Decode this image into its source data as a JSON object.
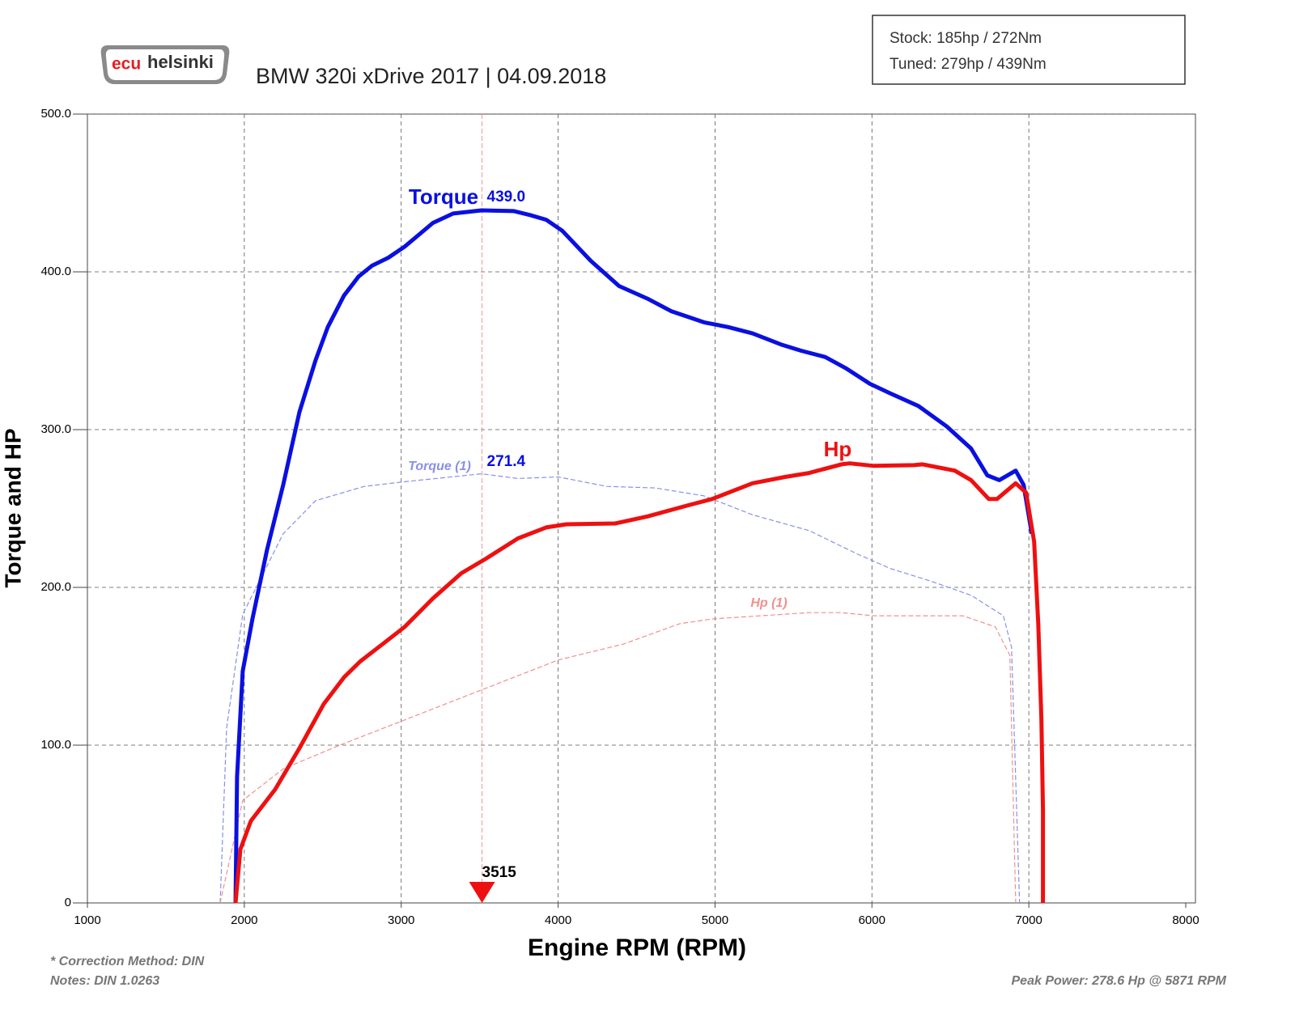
{
  "chart_data": {
    "type": "line",
    "title": "BMW 320i xDrive 2017 | 04.09.2018",
    "logo": {
      "part1": "ecu",
      "part2": "helsinki"
    },
    "summary": [
      "Stock:  185hp / 272Nm",
      "Tuned:  279hp / 439Nm"
    ],
    "x_label": "Engine RPM (RPM)",
    "y_label": "Torque and HP",
    "xlim": [
      1000,
      8000
    ],
    "ylim": [
      0,
      500
    ],
    "xticks": [
      1000,
      2000,
      3000,
      4000,
      5000,
      6000,
      7000,
      8000
    ],
    "yticks": [
      0,
      {
        "value": 100,
        "label": "100.0"
      },
      {
        "value": 200,
        "label": "200.0"
      },
      {
        "value": 300,
        "label": "300.0"
      },
      {
        "value": 400,
        "label": "400.0"
      },
      {
        "value": 500,
        "label": "500.0"
      }
    ],
    "grid": true,
    "series": [
      {
        "name": "Torque",
        "color": "#0a10e0",
        "dashed": false,
        "x": [
          1944,
          1954,
          1990,
          2052,
          2145,
          2248,
          2351,
          2454,
          2532,
          2635,
          2728,
          2815,
          2918,
          3022,
          3202,
          3331,
          3512,
          3718,
          3821,
          3924,
          4027,
          4208,
          4388,
          4569,
          4723,
          4930,
          5085,
          5239,
          5420,
          5549,
          5703,
          5832,
          5987,
          6116,
          6296,
          6477,
          6632,
          6735,
          6812,
          6916,
          6967,
          7019
        ],
        "values": [
          0,
          80,
          147,
          180,
          224,
          265,
          311,
          344,
          365,
          385,
          397,
          404,
          409,
          416,
          431,
          437,
          439,
          438.5,
          436,
          433,
          426,
          407,
          391,
          383,
          375,
          368,
          365,
          361,
          354,
          350,
          346,
          339,
          329,
          323,
          315,
          302,
          288,
          271,
          268,
          274,
          265,
          234
        ]
      },
      {
        "name": "Hp",
        "color": "#ee1010",
        "dashed": false,
        "x": [
          1944,
          1975,
          2042,
          2197,
          2351,
          2506,
          2635,
          2738,
          2893,
          3022,
          3202,
          3383,
          3537,
          3743,
          3924,
          4053,
          4363,
          4569,
          4827,
          4981,
          5239,
          5446,
          5600,
          5806,
          5858,
          6012,
          6270,
          6322,
          6528,
          6632,
          6745,
          6797,
          6916,
          6983,
          7034,
          7060,
          7080,
          7090,
          7090
        ],
        "values": [
          0,
          34,
          52,
          72,
          98,
          126,
          143,
          153,
          165,
          175,
          193,
          209,
          218,
          231,
          238,
          240,
          240.5,
          245,
          252,
          256,
          266,
          270,
          272.5,
          278,
          278.6,
          277,
          277.5,
          278,
          274,
          268,
          256,
          256,
          266,
          260,
          229,
          177,
          116,
          59,
          0
        ]
      },
      {
        "name": "Torque (1)",
        "color": "#8890e8",
        "dashed": true,
        "x": [
          1846,
          1887,
          1990,
          2248,
          2454,
          2764,
          3022,
          3512,
          3743,
          4001,
          4311,
          4620,
          4930,
          5239,
          5600,
          5910,
          6116,
          6374,
          6632,
          6838,
          6890,
          6941
        ],
        "values": [
          0,
          111,
          183,
          234,
          255,
          264,
          267,
          272,
          269,
          270,
          264,
          263,
          258,
          246,
          236,
          221,
          212,
          204,
          195,
          182,
          162,
          0
        ]
      },
      {
        "name": "Hp (1)",
        "color": "#f09090",
        "dashed": true,
        "x": [
          1846,
          1990,
          2248,
          2609,
          3022,
          3486,
          4001,
          4414,
          4775,
          4981,
          5600,
          5806,
          6012,
          6270,
          6580,
          6786,
          6879,
          6916
        ],
        "values": [
          0,
          65,
          85,
          100,
          116,
          134,
          154,
          164,
          177,
          180,
          184,
          184,
          182,
          182,
          182,
          175,
          157,
          0
        ]
      }
    ],
    "cursor": 3515,
    "peak_labels": [
      {
        "value": 439.0,
        "label": "439.0",
        "color": "#0a10e0"
      },
      {
        "value": 271.4,
        "label": "271.4",
        "color": "#0a10e0"
      }
    ],
    "footer": [
      "* Correction Method: DIN",
      "Notes: DIN 1.0263"
    ],
    "peak_note": "Peak Power: 278.6 Hp @ 5871 RPM"
  }
}
